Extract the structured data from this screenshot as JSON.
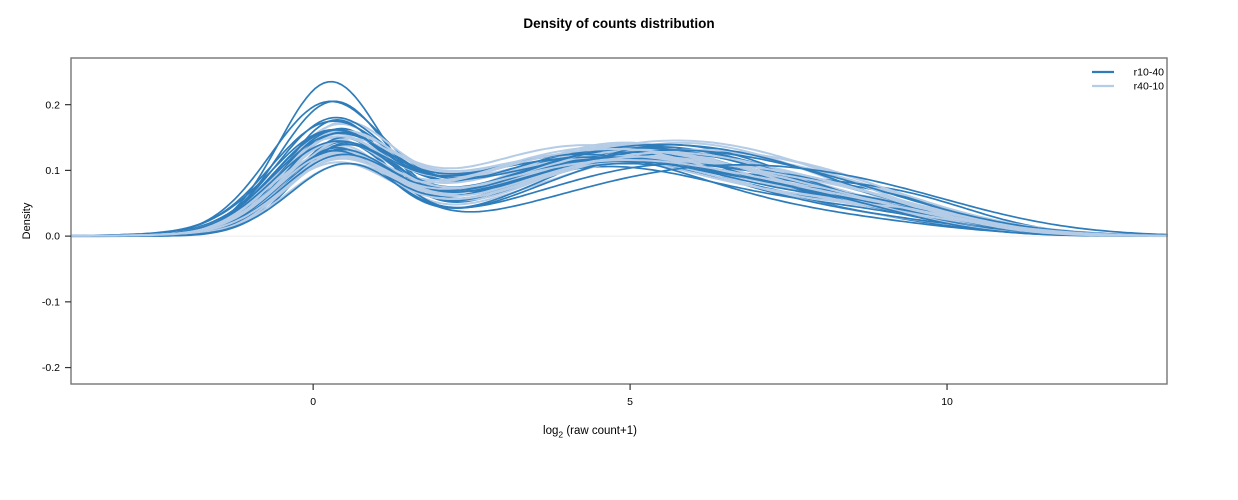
{
  "chart_data": {
    "type": "line",
    "title": "Density of counts distribution",
    "xlabel": {
      "prefix": "log",
      "sub": "2",
      "rest": " (raw count+1)"
    },
    "ylabel": "Density",
    "xlim": [
      -3.82,
      13.47
    ],
    "ylim": [
      -0.225,
      0.271
    ],
    "x_ticks": [
      {
        "value": 0,
        "label": "0"
      },
      {
        "value": 5,
        "label": "5"
      },
      {
        "value": 10,
        "label": "10"
      }
    ],
    "y_ticks": [
      {
        "value": 0.2,
        "label": "0.2"
      },
      {
        "value": 0.1,
        "label": "0.1"
      },
      {
        "value": 0.0,
        "label": "0.0"
      },
      {
        "value": -0.1,
        "label": "-0.1"
      },
      {
        "value": -0.2,
        "label": "-0.2"
      }
    ],
    "grid": false,
    "zero_line_color": "#ececec",
    "legend": {
      "position": "top-right",
      "entries": [
        {
          "label": "r10-40",
          "color": "#2e7cba"
        },
        {
          "label": "r40-10",
          "color": "#b5cce6"
        }
      ]
    },
    "curve_params_format": "[peak1_height, peak1_center, peak1_sd, peak2_height, peak2_center, peak2_sd, peak3_height, peak3_center, peak3_sd]; density(x) = sum of the three gaussian bumps; one bimodal density curve per sample",
    "series": [
      {
        "name": "r10-40",
        "color": "#2e7cba",
        "stroke_width": 1.7,
        "curves": [
          [
            0.225,
            0.25,
            0.8,
            0.105,
            4.6,
            2.0,
            0.03,
            8.6,
            1.5
          ],
          [
            0.195,
            0.3,
            0.85,
            0.11,
            4.9,
            2.1,
            0.025,
            8.9,
            1.4
          ],
          [
            0.185,
            0.2,
            0.9,
            0.12,
            4.4,
            2.2,
            0.02,
            8.3,
            1.6
          ],
          [
            0.17,
            0.35,
            0.8,
            0.115,
            5.1,
            2.0,
            0.03,
            8.8,
            1.3
          ],
          [
            0.16,
            0.28,
            0.88,
            0.125,
            4.7,
            2.3,
            0.028,
            9.1,
            1.5
          ],
          [
            0.155,
            0.4,
            0.82,
            0.13,
            5.3,
            2.1,
            0.022,
            8.5,
            1.7
          ],
          [
            0.15,
            0.22,
            0.92,
            0.118,
            4.5,
            2.4,
            0.035,
            8.2,
            1.4
          ],
          [
            0.148,
            0.33,
            0.86,
            0.128,
            5.0,
            2.2,
            0.018,
            9.3,
            1.3
          ],
          [
            0.145,
            0.45,
            0.78,
            0.122,
            5.5,
            2.0,
            0.026,
            8.7,
            1.6
          ],
          [
            0.142,
            0.27,
            0.9,
            0.132,
            4.8,
            2.3,
            0.024,
            8.4,
            1.5
          ],
          [
            0.14,
            0.38,
            0.84,
            0.112,
            5.2,
            2.5,
            0.032,
            9.0,
            1.4
          ],
          [
            0.138,
            0.24,
            0.88,
            0.126,
            4.3,
            2.2,
            0.02,
            8.6,
            1.8
          ],
          [
            0.135,
            0.42,
            0.8,
            0.135,
            5.4,
            2.1,
            0.028,
            8.9,
            1.3
          ],
          [
            0.132,
            0.3,
            0.94,
            0.116,
            4.6,
            2.4,
            0.022,
            8.1,
            1.6
          ],
          [
            0.13,
            0.35,
            0.82,
            0.138,
            5.6,
            2.0,
            0.016,
            9.2,
            1.5
          ],
          [
            0.128,
            0.2,
            0.9,
            0.12,
            4.4,
            2.6,
            0.03,
            8.8,
            1.4
          ],
          [
            0.126,
            0.48,
            0.78,
            0.13,
            5.0,
            2.2,
            0.025,
            8.3,
            1.7
          ],
          [
            0.124,
            0.32,
            0.86,
            0.11,
            5.8,
            2.3,
            0.034,
            9.4,
            1.2
          ],
          [
            0.122,
            0.26,
            0.92,
            0.124,
            4.2,
            2.1,
            0.018,
            8.5,
            1.6
          ],
          [
            0.12,
            0.44,
            0.84,
            0.134,
            5.2,
            2.4,
            0.026,
            8.0,
            1.5
          ],
          [
            0.118,
            0.36,
            0.88,
            0.114,
            4.9,
            2.2,
            0.03,
            9.1,
            1.3
          ],
          [
            0.115,
            0.28,
            0.82,
            0.128,
            5.5,
            2.5,
            0.02,
            8.7,
            1.6
          ],
          [
            0.112,
            0.4,
            0.9,
            0.118,
            4.7,
            2.0,
            0.036,
            8.2,
            1.4
          ],
          [
            0.105,
            0.5,
            0.86,
            0.095,
            6.0,
            2.3,
            0.04,
            9.0,
            1.8
          ]
        ]
      },
      {
        "name": "r40-10",
        "color": "#b5cce6",
        "stroke_width": 2.0,
        "curves": [
          [
            0.15,
            0.35,
            0.85,
            0.13,
            4.8,
            2.3,
            0.025,
            8.5,
            1.5
          ],
          [
            0.145,
            0.28,
            0.9,
            0.135,
            5.2,
            2.2,
            0.02,
            8.9,
            1.4
          ],
          [
            0.14,
            0.4,
            0.82,
            0.128,
            4.5,
            2.5,
            0.03,
            8.2,
            1.6
          ],
          [
            0.138,
            0.25,
            0.88,
            0.14,
            5.0,
            2.1,
            0.022,
            9.1,
            1.3
          ],
          [
            0.135,
            0.45,
            0.84,
            0.125,
            5.5,
            2.4,
            0.028,
            8.6,
            1.5
          ],
          [
            0.132,
            0.3,
            0.92,
            0.138,
            4.3,
            2.2,
            0.018,
            8.8,
            1.7
          ],
          [
            0.13,
            0.38,
            0.8,
            0.122,
            5.7,
            2.3,
            0.032,
            8.4,
            1.4
          ],
          [
            0.128,
            0.22,
            0.9,
            0.142,
            4.9,
            2.0,
            0.024,
            9.3,
            1.5
          ],
          [
            0.126,
            0.42,
            0.86,
            0.118,
            4.6,
            2.6,
            0.026,
            8.1,
            1.6
          ],
          [
            0.124,
            0.33,
            0.88,
            0.132,
            5.3,
            2.2,
            0.02,
            8.7,
            1.3
          ],
          [
            0.122,
            0.27,
            0.84,
            0.126,
            4.4,
            2.4,
            0.034,
            9.0,
            1.5
          ],
          [
            0.12,
            0.47,
            0.9,
            0.136,
            5.6,
            2.1,
            0.022,
            8.3,
            1.6
          ],
          [
            0.118,
            0.31,
            0.82,
            0.12,
            4.7,
            2.5,
            0.028,
            8.9,
            1.4
          ],
          [
            0.116,
            0.24,
            0.94,
            0.13,
            5.1,
            2.2,
            0.016,
            9.2,
            1.7
          ],
          [
            0.114,
            0.44,
            0.86,
            0.124,
            4.2,
            2.3,
            0.03,
            8.5,
            1.3
          ],
          [
            0.112,
            0.36,
            0.8,
            0.138,
            5.4,
            2.4,
            0.024,
            8.0,
            1.6
          ],
          [
            0.11,
            0.29,
            0.92,
            0.116,
            4.8,
            2.1,
            0.032,
            9.4,
            1.4
          ],
          [
            0.108,
            0.41,
            0.84,
            0.128,
            5.8,
            2.5,
            0.018,
            8.6,
            1.5
          ],
          [
            0.106,
            0.26,
            0.88,
            0.134,
            4.5,
            2.2,
            0.026,
            8.8,
            1.6
          ],
          [
            0.104,
            0.39,
            0.86,
            0.112,
            5.0,
            2.6,
            0.03,
            8.2,
            1.4
          ],
          [
            0.102,
            0.32,
            0.9,
            0.126,
            5.5,
            2.3,
            0.022,
            9.1,
            1.5
          ],
          [
            0.1,
            0.23,
            0.82,
            0.13,
            4.6,
            2.4,
            0.028,
            8.4,
            1.7
          ],
          [
            0.098,
            0.46,
            0.88,
            0.12,
            5.2,
            2.2,
            0.034,
            8.7,
            1.3
          ],
          [
            0.095,
            0.34,
            0.84,
            0.115,
            4.9,
            2.5,
            0.02,
            9.0,
            1.6
          ]
        ]
      }
    ],
    "plot_border_color": "#757575",
    "tick_color": "#333333"
  }
}
